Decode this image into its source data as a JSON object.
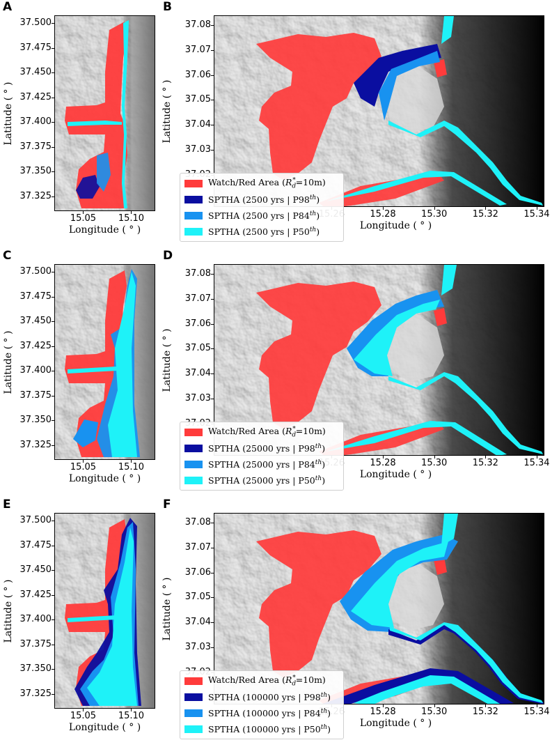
{
  "colors": {
    "watch": "#ff3b3b",
    "p98": "#0a0ea0",
    "p84": "#1892f0",
    "p50": "#1ef2f8"
  },
  "labels": {
    "xlabel": "Longitude ( ° )",
    "ylabel": "Latitude ( ° )"
  },
  "chart_data": [
    {
      "panel": "A",
      "type": "map",
      "xticks": [
        "15.05",
        "15.10"
      ],
      "xtick_values": [
        15.05,
        15.1
      ],
      "yticks": [
        "37.500",
        "37.475",
        "37.450",
        "37.425",
        "37.400",
        "37.375",
        "37.350",
        "37.325"
      ],
      "ytick_values": [
        37.5,
        37.475,
        37.45,
        37.425,
        37.4,
        37.375,
        37.35,
        37.325
      ],
      "xlim": [
        15.02,
        15.125
      ],
      "ylim": [
        37.31,
        37.508
      ]
    },
    {
      "panel": "B",
      "type": "map",
      "xticks": [
        "15.26",
        "15.28",
        "15.30",
        "15.32",
        "15.34"
      ],
      "xtick_values": [
        15.26,
        15.28,
        15.3,
        15.32,
        15.34
      ],
      "yticks": [
        "37.08",
        "37.07",
        "37.06",
        "37.05",
        "37.04",
        "37.03",
        "37.02"
      ],
      "ytick_values": [
        37.08,
        37.07,
        37.06,
        37.05,
        37.04,
        37.03,
        37.02
      ],
      "xlim": [
        15.214,
        15.343
      ],
      "ylim": [
        37.007,
        37.084
      ],
      "legend": {
        "watch": "Watch/Red Area (",
        "watch_sym": "R",
        "watch_sub": "d",
        "watch_sup": "*",
        "watch_tail": "=10m)",
        "series": [
          {
            "prefix": "SPTHA (2500 yrs | P98",
            "sup": "th",
            "suffix": ")"
          },
          {
            "prefix": "SPTHA (2500 yrs | P84",
            "sup": "th",
            "suffix": ")"
          },
          {
            "prefix": "SPTHA (2500 yrs | P50",
            "sup": "th",
            "suffix": ")"
          }
        ]
      }
    },
    {
      "panel": "C",
      "type": "map",
      "xticks": [
        "15.05",
        "15.10"
      ],
      "xtick_values": [
        15.05,
        15.1
      ],
      "yticks": [
        "37.500",
        "37.475",
        "37.450",
        "37.425",
        "37.400",
        "37.375",
        "37.350",
        "37.325"
      ],
      "ytick_values": [
        37.5,
        37.475,
        37.45,
        37.425,
        37.4,
        37.375,
        37.35,
        37.325
      ],
      "xlim": [
        15.02,
        15.125
      ],
      "ylim": [
        37.31,
        37.508
      ]
    },
    {
      "panel": "D",
      "type": "map",
      "xticks": [
        "15.26",
        "15.28",
        "15.30",
        "15.32",
        "15.34"
      ],
      "xtick_values": [
        15.26,
        15.28,
        15.3,
        15.32,
        15.34
      ],
      "yticks": [
        "37.08",
        "37.07",
        "37.06",
        "37.05",
        "37.04",
        "37.03",
        "37.02"
      ],
      "ytick_values": [
        37.08,
        37.07,
        37.06,
        37.05,
        37.04,
        37.03,
        37.02
      ],
      "xlim": [
        15.214,
        15.343
      ],
      "ylim": [
        37.007,
        37.084
      ],
      "legend": {
        "watch": "Watch/Red Area (",
        "watch_sym": "R",
        "watch_sub": "d",
        "watch_sup": "*",
        "watch_tail": "=10m)",
        "series": [
          {
            "prefix": "SPTHA (25000 yrs | P98",
            "sup": "th",
            "suffix": ")"
          },
          {
            "prefix": "SPTHA (25000 yrs | P84",
            "sup": "th",
            "suffix": ")"
          },
          {
            "prefix": "SPTHA (25000 yrs | P50",
            "sup": "th",
            "suffix": ")"
          }
        ]
      }
    },
    {
      "panel": "E",
      "type": "map",
      "xticks": [
        "15.05",
        "15.10"
      ],
      "xtick_values": [
        15.05,
        15.1
      ],
      "yticks": [
        "37.500",
        "37.475",
        "37.450",
        "37.425",
        "37.400",
        "37.375",
        "37.350",
        "37.325"
      ],
      "ytick_values": [
        37.5,
        37.475,
        37.45,
        37.425,
        37.4,
        37.375,
        37.35,
        37.325
      ],
      "xlim": [
        15.02,
        15.125
      ],
      "ylim": [
        37.31,
        37.508
      ]
    },
    {
      "panel": "F",
      "type": "map",
      "xticks": [
        "15.26",
        "15.28",
        "15.30",
        "15.32",
        "15.34"
      ],
      "xtick_values": [
        15.26,
        15.28,
        15.3,
        15.32,
        15.34
      ],
      "yticks": [
        "37.08",
        "37.07",
        "37.06",
        "37.05",
        "37.04",
        "37.03",
        "37.02"
      ],
      "ytick_values": [
        37.08,
        37.07,
        37.06,
        37.05,
        37.04,
        37.03,
        37.02
      ],
      "xlim": [
        15.214,
        15.343
      ],
      "ylim": [
        37.007,
        37.084
      ],
      "legend": {
        "watch": "Watch/Red Area (",
        "watch_sym": "R",
        "watch_sub": "d",
        "watch_sup": "*",
        "watch_tail": "=10m)",
        "series": [
          {
            "prefix": "SPTHA (100000 yrs | P98",
            "sup": "th",
            "suffix": ")"
          },
          {
            "prefix": "SPTHA (100000 yrs | P84",
            "sup": "th",
            "suffix": ")"
          },
          {
            "prefix": "SPTHA (100000 yrs | P50",
            "sup": "th",
            "suffix": ")"
          }
        ]
      }
    }
  ]
}
